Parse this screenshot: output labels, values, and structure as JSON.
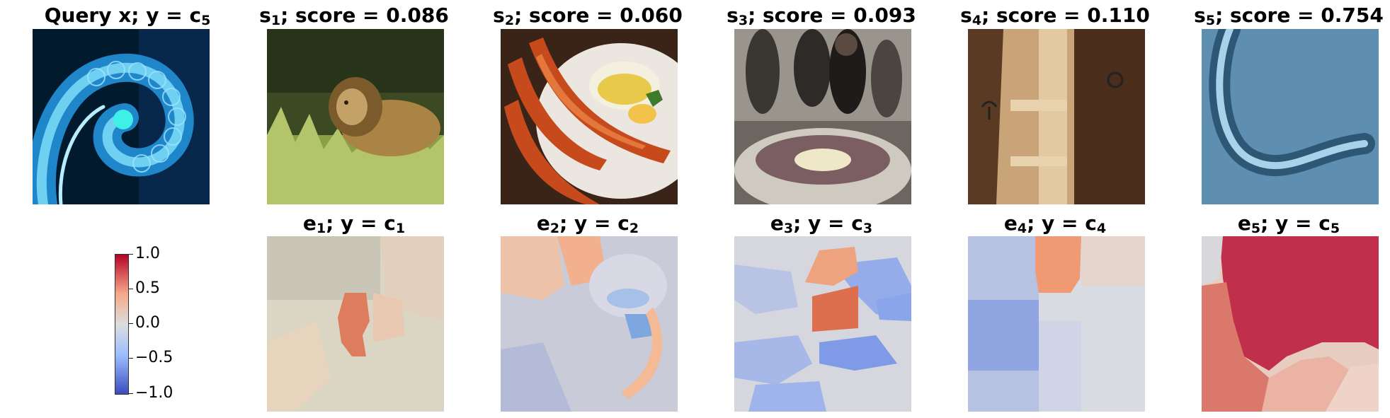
{
  "query": {
    "prefix": "Query x; ",
    "label": "y = c",
    "sub": "5"
  },
  "samples": [
    {
      "sub": "1",
      "score_text": "; score = 0.086",
      "score": 0.086,
      "content": "lion in grass"
    },
    {
      "sub": "2",
      "score_text": "; score = 0.060",
      "score": 0.06,
      "content": "crab legs on plate"
    },
    {
      "sub": "3",
      "score_text": "; score = 0.093",
      "score": 0.093,
      "content": "people and bowl of food"
    },
    {
      "sub": "4",
      "score_text": "; score = 0.110",
      "score": 0.11,
      "content": "wooden crate"
    },
    {
      "sub": "5",
      "score_text": "; score = 0.754",
      "score": 0.754,
      "content": "nematode worm"
    }
  ],
  "explanations": [
    {
      "sub": "1",
      "label": "; y = c",
      "class_sub": "1"
    },
    {
      "sub": "2",
      "label": "; y = c",
      "class_sub": "2"
    },
    {
      "sub": "3",
      "label": "; y = c",
      "class_sub": "3"
    },
    {
      "sub": "4",
      "label": "; y = c",
      "class_sub": "4"
    },
    {
      "sub": "5",
      "label": "; y = c",
      "class_sub": "5"
    }
  ],
  "colorbar": {
    "ticks": [
      "1.0",
      "0.5",
      "0.0",
      "−0.5",
      "−1.0"
    ],
    "colors": {
      "high": "#b40426",
      "mid": "#dddddd",
      "low": "#3b4cc0"
    }
  }
}
